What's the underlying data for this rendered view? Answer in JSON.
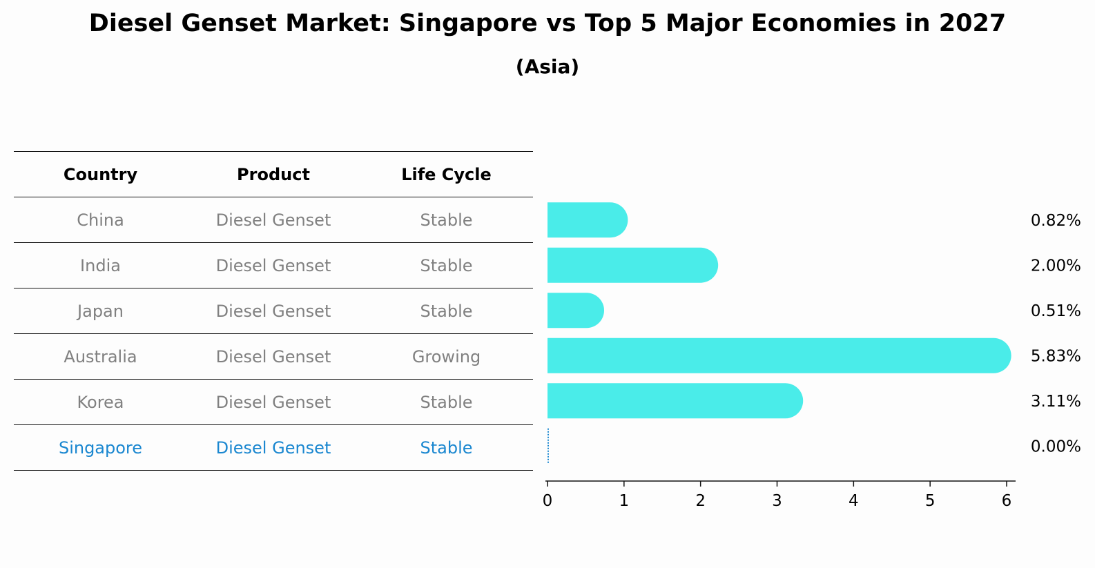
{
  "title": "Diesel Genset Market: Singapore vs Top 5 Major Economies in 2027",
  "subtitle": "(Asia)",
  "table": {
    "headers": [
      "Country",
      "Product",
      "Life Cycle"
    ],
    "rows": [
      [
        "China",
        "Diesel Genset",
        "Stable"
      ],
      [
        "India",
        "Diesel Genset",
        "Stable"
      ],
      [
        "Japan",
        "Diesel Genset",
        "Stable"
      ],
      [
        "Australia",
        "Diesel Genset",
        "Growing"
      ],
      [
        "Korea",
        "Diesel Genset",
        "Stable"
      ],
      [
        "Singapore",
        "Diesel Genset",
        "Stable"
      ]
    ],
    "highlight_row": "Singapore"
  },
  "colors": {
    "bar": "#4aece9",
    "highlight": "#1a87d0",
    "muted_text": "#808080"
  },
  "chart_data": {
    "type": "bar",
    "orientation": "horizontal",
    "categories": [
      "China",
      "India",
      "Japan",
      "Australia",
      "Korea",
      "Singapore"
    ],
    "values": [
      0.82,
      2.0,
      0.51,
      5.83,
      3.11,
      0.0
    ],
    "value_labels": [
      "0.82%",
      "2.00%",
      "0.51%",
      "5.83%",
      "3.11%",
      "0.00%"
    ],
    "xlim": [
      0,
      6
    ],
    "xticks": [
      "0",
      "1",
      "2",
      "3",
      "4",
      "5",
      "6"
    ],
    "xlabel": "",
    "ylabel": "",
    "grid": false,
    "bar_style": "rounded-end"
  }
}
